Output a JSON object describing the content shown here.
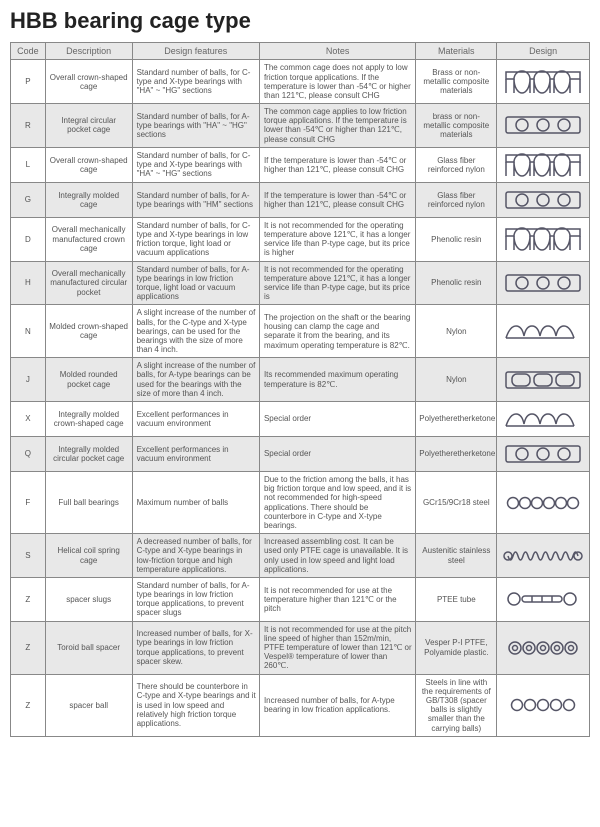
{
  "title": "HBB bearing cage type",
  "columns": [
    "Code",
    "Description",
    "Design features",
    "Notes",
    "Materials",
    "Design"
  ],
  "rows": [
    {
      "code": "P",
      "desc": "Overall crown-shaped cage",
      "feat": "Standard number of balls, for C-type and X-type bearings with \"HA\" ~ \"HG\" sections",
      "notes": "The common cage does not apply to low friction torque applications. If the temperature is lower than -54℃ or higher than 121℃, please consult CHG",
      "mat": "Brass or non-metallic composite materials",
      "icon": "crown"
    },
    {
      "code": "R",
      "desc": "Integral circular pocket cage",
      "feat": "Standard number of balls, for A-type bearings with \"HA\" ~ \"HG\" sections",
      "notes": "The common cage applies to low friction torque applications. If the temperature is lower than -54℃ or higher than 121℃, please consult CHG",
      "mat": "brass or non-metallic composite materials",
      "icon": "pocket"
    },
    {
      "code": "L",
      "desc": "Overall crown-shaped cage",
      "feat": "Standard number of balls, for C-type and X-type bearings with \"HA\" ~ \"HG\" sections",
      "notes": "If the temperature is lower than -54℃ or higher than 121℃, please consult CHG",
      "mat": "Glass fiber reinforced nylon",
      "icon": "crown"
    },
    {
      "code": "G",
      "desc": "Integrally molded cage",
      "feat": "Standard number of balls, for A-type bearings with \"HM\" sections",
      "notes": "If the temperature is lower than -54℃ or higher than 121℃, please consult CHG",
      "mat": "Glass fiber reinforced nylon",
      "icon": "pocket"
    },
    {
      "code": "D",
      "desc": "Overall mechanically manufactured crown cage",
      "feat": "Standard number of balls, for C-type and X-type bearings in low friction torque, light load or vacuum applications",
      "notes": "It is not recommended for the operating temperature above 121℃, it has a longer service life than P-type cage, but its price is higher",
      "mat": "Phenolic resin",
      "icon": "crown"
    },
    {
      "code": "H",
      "desc": "Overall mechanically manufactured circular pocket",
      "feat": "Standard number of balls, for A-type bearings in low friction torque, light load or vacuum applications",
      "notes": "It is not recommended for the operating temperature above 121℃, it has a longer service life than P-type cage, but its price is",
      "mat": "Phenolic resin",
      "icon": "pocket"
    },
    {
      "code": "N",
      "desc": "Molded crown-shaped cage",
      "feat": "A slight increase of the number of balls, for the C-type and X-type bearings, can be used for the bearings with the size of more than 4 inch.",
      "notes": "The projection on the shaft or the bearing housing can clamp the cage and separate it from the bearing, and its maximum operating temperature is 82℃.",
      "mat": "Nylon",
      "icon": "crownwave"
    },
    {
      "code": "J",
      "desc": "Molded rounded pocket cage",
      "feat": "A slight increase of the number of balls, for A-type bearings can be used for the bearings with the size of more than 4 inch.",
      "notes": "Its recommended maximum operating temperature is 82℃.",
      "mat": "Nylon",
      "icon": "roundpocket"
    },
    {
      "code": "X",
      "desc": "Integrally molded crown-shaped cage",
      "feat": "Excellent performances in vacuum environment",
      "notes": "Special order",
      "mat": "Polyetheretherketone",
      "icon": "crownwave"
    },
    {
      "code": "Q",
      "desc": "Integrally molded circular pocket cage",
      "feat": "Excellent performances in vacuum environment",
      "notes": "Special order",
      "mat": "Polyetheretherketone",
      "icon": "pocket"
    },
    {
      "code": "F",
      "desc": "Full ball bearings",
      "feat": "Maximum number of balls",
      "notes": "Due to the friction among the balls, it has big friction torque and low speed, and it is not recommended for high-speed applications. There should be counterbore in C-type and X-type bearings.",
      "mat": "GCr15/9Cr18 steel",
      "icon": "balls6"
    },
    {
      "code": "S",
      "desc": "Helical coil spring cage",
      "feat": "A decreased number of balls, for C-type and X-type bearings in low-friction torque and high temperature applications.",
      "notes": "Increased assembling cost. It can be used only PTFE cage is unavailable. It is only used in low speed and light load applications.",
      "mat": "Austenitic stainless steel",
      "icon": "spring"
    },
    {
      "code": "Z",
      "desc": "spacer slugs",
      "feat": "Standard number of balls, for A-type bearings in low friction torque applications, to prevent spacer slugs",
      "notes": "It is not recommended for use at the temperature higher than 121℃ or the pitch",
      "mat": "PTEE tube",
      "icon": "slugs"
    },
    {
      "code": "Z",
      "desc": "Toroid ball spacer",
      "feat": "Increased number of balls, for X-type bearings in low friction torque applications, to prevent spacer skew.",
      "notes": "It is not recommended for use at the pitch line speed of higher than 152m/min, PTFE temperature of lower than 121℃ or Vespel® temperature of lower than 260℃.",
      "mat": "Vesper P-I PTFE, Polyamide plastic.",
      "icon": "toroid"
    },
    {
      "code": "Z",
      "desc": "spacer ball",
      "feat": "There should be counterbore in C-type and X-type bearings and it is used in low speed and relatively high friction torque applications.",
      "notes": "Increased number of balls, for A-type bearing in low frication applications.",
      "mat": "Steels in line with the requirements of GB/T308 (spacer balls is slightly smaller than the carrying balls)",
      "icon": "balls5"
    }
  ],
  "style": {
    "altBg": "#e8e8e8",
    "stroke": "#667",
    "iconFill": "none",
    "iconStroke": "#556"
  }
}
